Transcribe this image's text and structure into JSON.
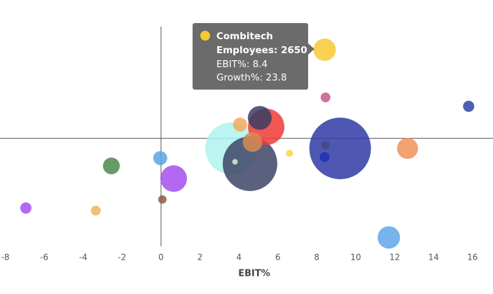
{
  "chart_data": {
    "type": "bubble",
    "x_label": "EBIT%",
    "xlim": [
      -8.27,
      17.05
    ],
    "xticks": [
      -8,
      -6,
      -4,
      -2,
      0,
      2,
      4,
      6,
      8,
      10,
      12,
      14,
      16
    ],
    "ylim": [
      -29,
      30
    ],
    "points": [
      {
        "x": 9.2,
        "y": -2.7,
        "size": 20000,
        "color": "#2f3ba6"
      },
      {
        "x": 3.6,
        "y": -2.7,
        "size": 14150,
        "color": "#aef3ee"
      },
      {
        "x": 4.57,
        "y": -6.8,
        "size": 15700,
        "color": "#3d4466"
      },
      {
        "x": 5.4,
        "y": 3.1,
        "size": 7000,
        "color": "#ee3b36"
      },
      {
        "x": 5.07,
        "y": 5.5,
        "size": 2990,
        "color": "#3a3c63"
      },
      {
        "x": 4.7,
        "y": -1.0,
        "size": 2030,
        "color": "#d98a52"
      },
      {
        "x": 4.06,
        "y": 3.7,
        "size": 1030,
        "color": "#f2a95e"
      },
      {
        "x": 8.45,
        "y": 11.0,
        "size": 507,
        "color": "#c75a8c"
      },
      {
        "x": 15.8,
        "y": 8.6,
        "size": 662,
        "color": "#3041a6"
      },
      {
        "x": 8.45,
        "y": -1.8,
        "size": 370,
        "color": "#454a7a"
      },
      {
        "x": 8.4,
        "y": -5.0,
        "size": 507,
        "color": "#1d2fb8"
      },
      {
        "x": 12.66,
        "y": -2.7,
        "size": 2330,
        "color": "#f0915a"
      },
      {
        "x": 6.6,
        "y": -4.0,
        "size": 258,
        "color": "#f3d64a"
      },
      {
        "x": 3.8,
        "y": -6.3,
        "size": 165,
        "color": "#d8f0c8"
      },
      {
        "x": -0.04,
        "y": -5.3,
        "size": 1030,
        "color": "#5ba3e8"
      },
      {
        "x": -2.55,
        "y": -7.4,
        "size": 1490,
        "color": "#4b8a4e"
      },
      {
        "x": 0.65,
        "y": -10.8,
        "size": 3730,
        "color": "#a64ef0"
      },
      {
        "x": 0.07,
        "y": -16.4,
        "size": 370,
        "color": "#8b5a3e"
      },
      {
        "x": -6.94,
        "y": -18.7,
        "size": 662,
        "color": "#a64ef0"
      },
      {
        "x": -3.35,
        "y": -19.4,
        "size": 507,
        "color": "#f2b160"
      },
      {
        "x": 11.7,
        "y": -26.6,
        "size": 2650,
        "color": "#5fa6ea"
      },
      {
        "name": "Combitech",
        "x": 8.4,
        "y": 23.8,
        "size": 2650,
        "color": "#f7c935"
      }
    ],
    "tooltip": {
      "point": 21,
      "size_label": "Employees:",
      "x_label": "EBIT%:",
      "y_label": "Growth%:"
    }
  }
}
